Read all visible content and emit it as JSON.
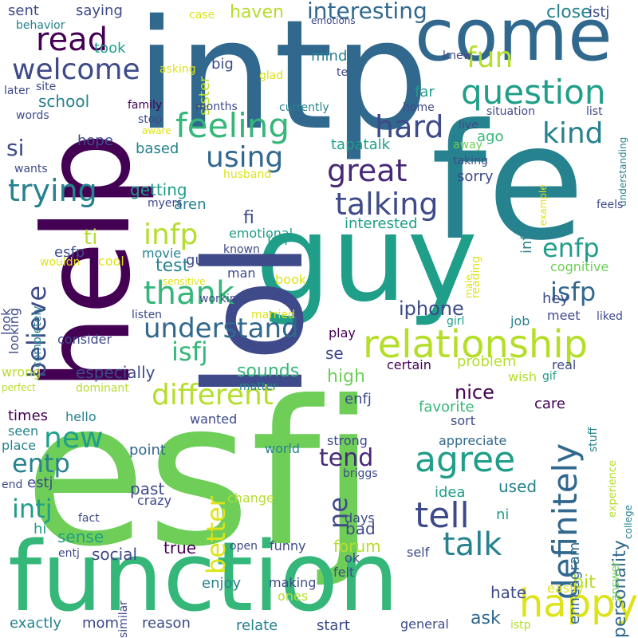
{
  "palette": {
    "dark_purple": "#440154",
    "indigo": "#3e4a89",
    "steel_blue": "#31688e",
    "teal": "#26828e",
    "green_teal": "#1f9e89",
    "green": "#35b779",
    "light_green": "#6ece58",
    "yellow_green": "#b5de2b",
    "yellow": "#dde318"
  },
  "words": [
    {
      "text": "esfj",
      "color": "#6ece58"
    },
    {
      "text": "intp",
      "color": "#31688e"
    },
    {
      "text": "fe",
      "color": "#26828e"
    },
    {
      "text": "guy",
      "color": "#1f9e89"
    },
    {
      "text": "help",
      "color": "#440154"
    },
    {
      "text": "lol",
      "color": "#3e4a89"
    },
    {
      "text": "function",
      "color": "#35b779"
    },
    {
      "text": "come",
      "color": "#31688e"
    },
    {
      "text": "relationship",
      "color": "#b5de2b"
    },
    {
      "text": "feeling",
      "color": "#35b779"
    },
    {
      "text": "question",
      "color": "#1f9e89"
    },
    {
      "text": "happy",
      "color": "#dde318"
    },
    {
      "text": "agree",
      "color": "#1f9e89"
    },
    {
      "text": "tell",
      "color": "#3e4a89"
    },
    {
      "text": "talk",
      "color": "#26828e"
    },
    {
      "text": "definitely",
      "color": "#31688e"
    },
    {
      "text": "different",
      "color": "#b5de2b"
    },
    {
      "text": "understand",
      "color": "#31688e"
    },
    {
      "text": "thank",
      "color": "#35b779"
    },
    {
      "text": "welcome",
      "color": "#3e4a89"
    },
    {
      "text": "read",
      "color": "#440154"
    },
    {
      "text": "talking",
      "color": "#3e4a89"
    },
    {
      "text": "great",
      "color": "#482878"
    },
    {
      "text": "hard",
      "color": "#3e4a89"
    },
    {
      "text": "trying",
      "color": "#26828e"
    },
    {
      "text": "using",
      "color": "#31688e"
    },
    {
      "text": "kind",
      "color": "#26828e"
    },
    {
      "text": "fun",
      "color": "#b5de2b"
    },
    {
      "text": "interesting",
      "color": "#31688e"
    },
    {
      "text": "new",
      "color": "#1f9e89"
    },
    {
      "text": "infp",
      "color": "#b5de2b"
    },
    {
      "text": "enfp",
      "color": "#1f9e89"
    },
    {
      "text": "isfp",
      "color": "#31688e"
    },
    {
      "text": "isfj",
      "color": "#35b779"
    },
    {
      "text": "believe",
      "color": "#3e4a89"
    },
    {
      "text": "intj",
      "color": "#1f9e89"
    },
    {
      "text": "entp",
      "color": "#26828e"
    },
    {
      "text": "better",
      "color": "#dde318"
    },
    {
      "text": "ne",
      "color": "#3e4a89"
    },
    {
      "text": "tend",
      "color": "#482878"
    },
    {
      "text": "personality",
      "color": "#31688e"
    },
    {
      "text": "ti",
      "color": "#b5de2b"
    },
    {
      "text": "si",
      "color": "#3e4a89"
    },
    {
      "text": "nice",
      "color": "#440154"
    },
    {
      "text": "iphone",
      "color": "#3e4a89"
    },
    {
      "text": "sounds",
      "color": "#35b779"
    },
    {
      "text": "high",
      "color": "#6ece58"
    },
    {
      "text": "especially",
      "color": "#3e4a89"
    },
    {
      "text": "getting",
      "color": "#1f9e89"
    },
    {
      "text": "fi",
      "color": "#3e4a89"
    },
    {
      "text": "test",
      "color": "#26828e"
    },
    {
      "text": "guess",
      "color": "#3e4a89"
    },
    {
      "text": "interested",
      "color": "#1f9e89"
    },
    {
      "text": "isn",
      "color": "#1f9e89"
    },
    {
      "text": "aren",
      "color": "#26828e"
    },
    {
      "text": "sense",
      "color": "#1f9e89"
    },
    {
      "text": "bad",
      "color": "#3e4a89"
    },
    {
      "text": "forum",
      "color": "#b5de2b"
    },
    {
      "text": "true",
      "color": "#440154"
    },
    {
      "text": "social",
      "color": "#3e4a89"
    },
    {
      "text": "ask",
      "color": "#31688e"
    },
    {
      "text": "bit",
      "color": "#b5de2b"
    },
    {
      "text": "enneagram",
      "color": "#31688e"
    },
    {
      "text": "ni",
      "color": "#1f9e89"
    },
    {
      "text": "used",
      "color": "#26828e"
    },
    {
      "text": "favorite",
      "color": "#35b779"
    },
    {
      "text": "problem",
      "color": "#b5de2b"
    },
    {
      "text": "enfj",
      "color": "#3e4a89"
    },
    {
      "text": "school",
      "color": "#26828e"
    },
    {
      "text": "sent",
      "color": "#3e4a89"
    },
    {
      "text": "saying",
      "color": "#3e4a89"
    },
    {
      "text": "haven",
      "color": "#b5de2b"
    },
    {
      "text": "close",
      "color": "#26828e"
    },
    {
      "text": "istj",
      "color": "#3e4a89"
    },
    {
      "text": "took",
      "color": "#1f9e89"
    },
    {
      "text": "mind",
      "color": "#26828e"
    },
    {
      "text": "sister",
      "color": "#b5de2b"
    },
    {
      "text": "big",
      "color": "#3e4a89"
    },
    {
      "text": "far",
      "color": "#1f9e89"
    },
    {
      "text": "sorry",
      "color": "#3e4a89"
    },
    {
      "text": "ago",
      "color": "#35b779"
    },
    {
      "text": "tapatalk",
      "color": "#1f9e89"
    },
    {
      "text": "based",
      "color": "#26828e"
    },
    {
      "text": "hope",
      "color": "#3e4a89"
    },
    {
      "text": "infj",
      "color": "#26828e"
    },
    {
      "text": "emotional",
      "color": "#1f9e89"
    },
    {
      "text": "esfp",
      "color": "#3e4a89"
    },
    {
      "text": "hey",
      "color": "#3e4a89"
    },
    {
      "text": "cognitive",
      "color": "#6ece58"
    },
    {
      "text": "look",
      "color": "#3e4a89"
    },
    {
      "text": "looking",
      "color": "#3e4a89"
    },
    {
      "text": "movie",
      "color": "#26828e"
    },
    {
      "text": "book",
      "color": "#dde318"
    },
    {
      "text": "listen",
      "color": "#3e4a89"
    },
    {
      "text": "working",
      "color": "#3e4a89"
    },
    {
      "text": "married",
      "color": "#dde318"
    },
    {
      "text": "meet",
      "color": "#3e4a89"
    },
    {
      "text": "job",
      "color": "#26828e"
    },
    {
      "text": "girl",
      "color": "#1f9e89"
    },
    {
      "text": "play",
      "color": "#440154"
    },
    {
      "text": "se",
      "color": "#3e4a89"
    },
    {
      "text": "certain",
      "color": "#440154"
    },
    {
      "text": "wish",
      "color": "#b5de2b"
    },
    {
      "text": "real",
      "color": "#3e4a89"
    },
    {
      "text": "care",
      "color": "#440154"
    },
    {
      "text": "gif",
      "color": "#1f9e89"
    },
    {
      "text": "stuff",
      "color": "#26828e"
    },
    {
      "text": "experience",
      "color": "#b5de2b"
    },
    {
      "text": "consider",
      "color": "#3e4a89"
    },
    {
      "text": "times",
      "color": "#440154"
    },
    {
      "text": "hello",
      "color": "#26828e"
    },
    {
      "text": "wanted",
      "color": "#3e4a89"
    },
    {
      "text": "seen",
      "color": "#26828e"
    },
    {
      "text": "place",
      "color": "#26828e"
    },
    {
      "text": "point",
      "color": "#31688e"
    },
    {
      "text": "world",
      "color": "#26828e"
    },
    {
      "text": "strong",
      "color": "#3e4a89"
    },
    {
      "text": "appreciate",
      "color": "#31688e"
    },
    {
      "text": "sort",
      "color": "#3e4a89"
    },
    {
      "text": "end",
      "color": "#3e4a89"
    },
    {
      "text": "estj",
      "color": "#3e4a89"
    },
    {
      "text": "past",
      "color": "#3e4a89"
    },
    {
      "text": "crazy",
      "color": "#3e4a89"
    },
    {
      "text": "change",
      "color": "#b5de2b"
    },
    {
      "text": "idea",
      "color": "#1f9e89"
    },
    {
      "text": "briggs",
      "color": "#3e4a89"
    },
    {
      "text": "days",
      "color": "#3e4a89"
    },
    {
      "text": "hi",
      "color": "#1f9e89"
    },
    {
      "text": "fact",
      "color": "#3e4a89"
    },
    {
      "text": "entj",
      "color": "#3e4a89"
    },
    {
      "text": "open",
      "color": "#3e4a89"
    },
    {
      "text": "funny",
      "color": "#3e4a89"
    },
    {
      "text": "self",
      "color": "#3e4a89"
    },
    {
      "text": "ok",
      "color": "#3e4a89"
    },
    {
      "text": "felt",
      "color": "#3e4a89"
    },
    {
      "text": "enjoy",
      "color": "#26828e"
    },
    {
      "text": "making",
      "color": "#3e4a89"
    },
    {
      "text": "ones",
      "color": "#b5de2b"
    },
    {
      "text": "hate",
      "color": "#3e4a89"
    },
    {
      "text": "easily",
      "color": "#dde318"
    },
    {
      "text": "answer",
      "color": "#6ece58"
    },
    {
      "text": "college",
      "color": "#26828e"
    },
    {
      "text": "similar",
      "color": "#3e4a89"
    },
    {
      "text": "exactly",
      "color": "#26828e"
    },
    {
      "text": "mom",
      "color": "#3e4a89"
    },
    {
      "text": "reason",
      "color": "#3e4a89"
    },
    {
      "text": "relate",
      "color": "#26828e"
    },
    {
      "text": "start",
      "color": "#3e4a89"
    },
    {
      "text": "general",
      "color": "#3e4a89"
    },
    {
      "text": "istp",
      "color": "#b5de2b"
    },
    {
      "text": "wrong",
      "color": "#b5de2b"
    },
    {
      "text": "perfect",
      "color": "#b5de2b"
    },
    {
      "text": "dominant",
      "color": "#b5de2b"
    },
    {
      "text": "matter",
      "color": "#26828e"
    },
    {
      "text": "completely",
      "color": "#26828e"
    },
    {
      "text": "wouldn",
      "color": "#dde318"
    },
    {
      "text": "cool",
      "color": "#dde318"
    },
    {
      "text": "man",
      "color": "#3e4a89"
    },
    {
      "text": "known",
      "color": "#3e4a89"
    },
    {
      "text": "sensitive",
      "color": "#dde318"
    },
    {
      "text": "myers",
      "color": "#3e4a89"
    },
    {
      "text": "husband",
      "color": "#dde318"
    },
    {
      "text": "wants",
      "color": "#3e4a89"
    },
    {
      "text": "words",
      "color": "#3e4a89"
    },
    {
      "text": "later",
      "color": "#3e4a89"
    },
    {
      "text": "site",
      "color": "#3e4a89"
    },
    {
      "text": "behavior",
      "color": "#26828e"
    },
    {
      "text": "case",
      "color": "#dde318"
    },
    {
      "text": "emotions",
      "color": "#3e4a89"
    },
    {
      "text": "asking",
      "color": "#dde318"
    },
    {
      "text": "glad",
      "color": "#dde318"
    },
    {
      "text": "knew",
      "color": "#3e4a89"
    },
    {
      "text": "te",
      "color": "#3e4a89"
    },
    {
      "text": "family",
      "color": "#440154"
    },
    {
      "text": "months",
      "color": "#3e4a89"
    },
    {
      "text": "currently",
      "color": "#26828e"
    },
    {
      "text": "home",
      "color": "#3e4a89"
    },
    {
      "text": "situation",
      "color": "#3e4a89"
    },
    {
      "text": "list",
      "color": "#3e4a89"
    },
    {
      "text": "stop",
      "color": "#3e4a89"
    },
    {
      "text": "aware",
      "color": "#dde318"
    },
    {
      "text": "live",
      "color": "#3e4a89"
    },
    {
      "text": "taking",
      "color": "#3e4a89"
    },
    {
      "text": "away",
      "color": "#6ece58"
    },
    {
      "text": "example",
      "color": "#dde318"
    },
    {
      "text": "understanding",
      "color": "#26828e"
    },
    {
      "text": "feels",
      "color": "#3e4a89"
    },
    {
      "text": "liked",
      "color": "#3e4a89"
    },
    {
      "text": "male",
      "color": "#dde318"
    },
    {
      "text": "reading",
      "color": "#dde318"
    }
  ]
}
